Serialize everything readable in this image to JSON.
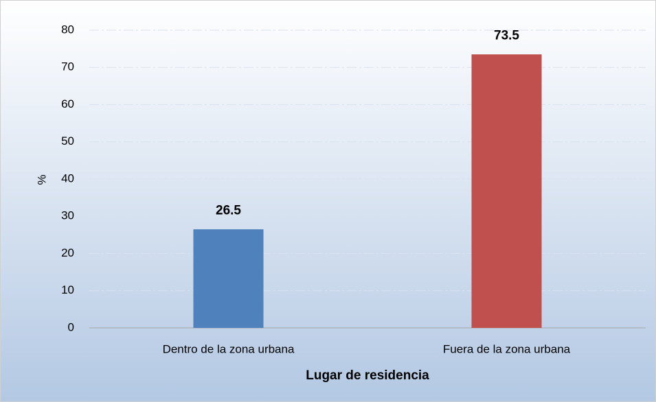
{
  "chart_data": {
    "type": "bar",
    "y_label": "%",
    "x_label": "Lugar de residencia",
    "categories": [
      "Dentro de la zona urbana",
      "Fuera de la zona urbana"
    ],
    "values": [
      26.5,
      73.5
    ],
    "colors": [
      "#4f81bd",
      "#c0504d"
    ],
    "ylim": [
      0,
      80
    ],
    "yticks": [
      0,
      10,
      20,
      30,
      40,
      50,
      60,
      70,
      80
    ],
    "grid": true
  }
}
